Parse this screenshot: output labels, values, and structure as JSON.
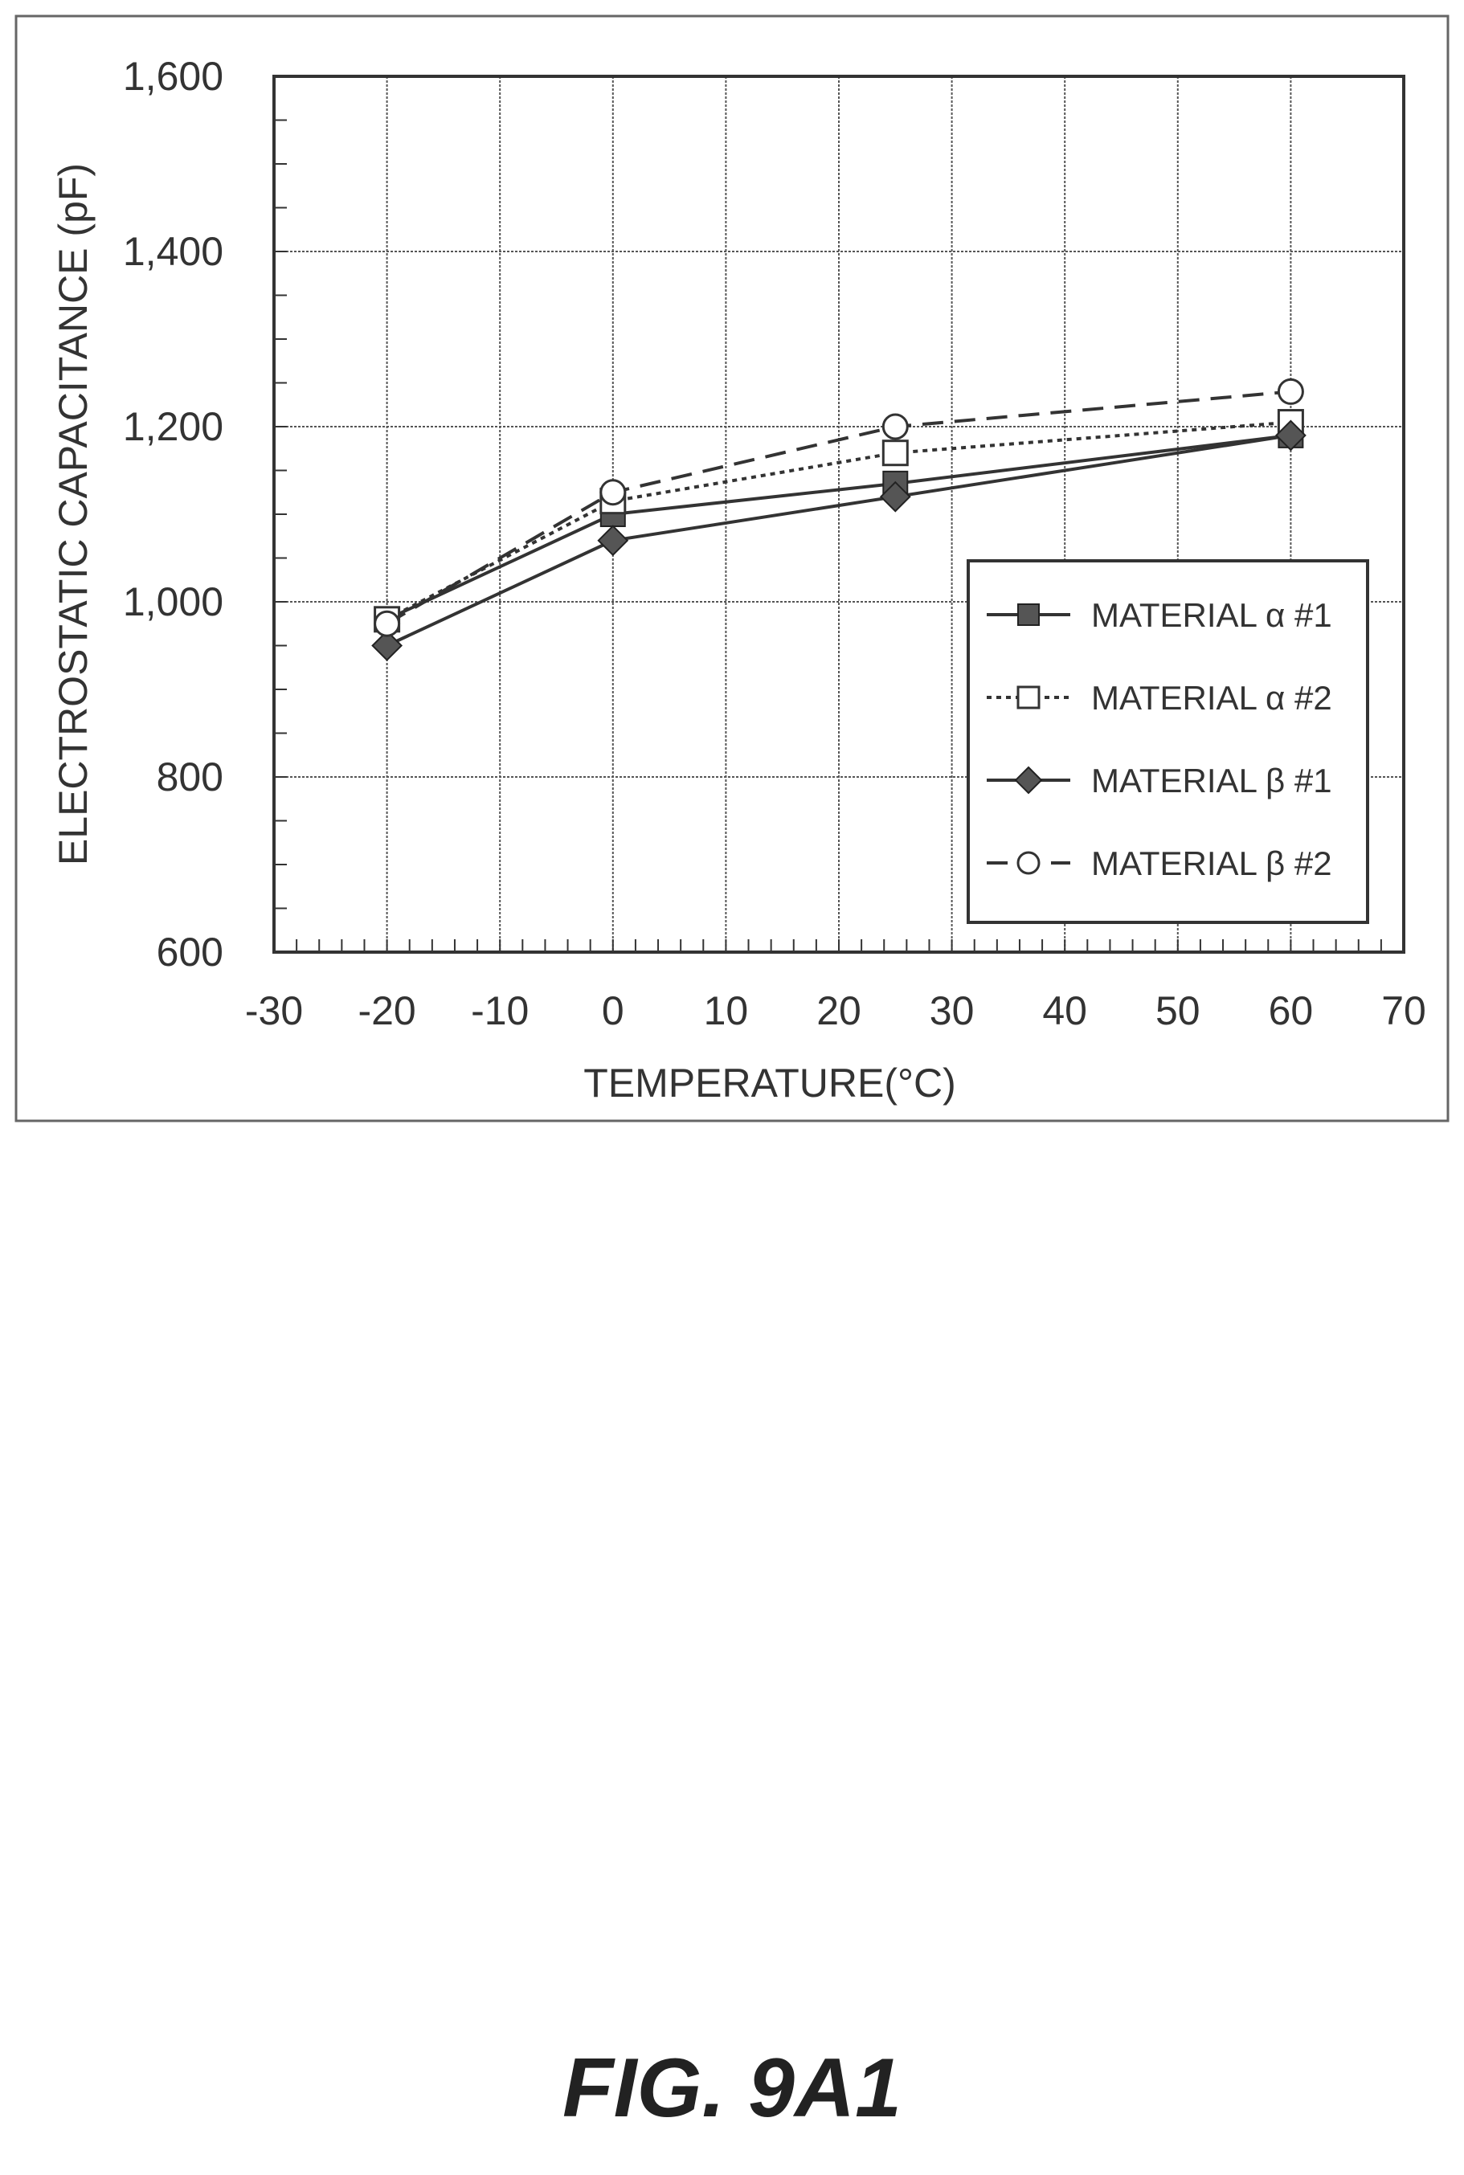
{
  "chart_data": {
    "type": "line",
    "xlabel": "TEMPERATURE(°C)",
    "ylabel": "ELECTROSTATIC CAPACITANCE (pF)",
    "xlim": [
      -30,
      70
    ],
    "ylim": [
      600,
      1600
    ],
    "x_ticks": [
      -30,
      -20,
      -10,
      0,
      10,
      20,
      30,
      40,
      50,
      60,
      70
    ],
    "x_tick_labels": [
      "-30",
      "-20",
      "-10",
      "0",
      "10",
      "20",
      "30",
      "40",
      "50",
      "60",
      "70"
    ],
    "y_ticks": [
      600,
      800,
      1000,
      1200,
      1400,
      1600
    ],
    "y_tick_labels": [
      "600",
      "800",
      "1,000",
      "1,200",
      "1,400",
      "1,600"
    ],
    "grid": true,
    "legend_position": "lower-right",
    "series": [
      {
        "name": "MATERIAL α #1",
        "x": [
          -20,
          0,
          25,
          60
        ],
        "y": [
          980,
          1100,
          1135,
          1190
        ],
        "marker": "filled-square",
        "line": "solid"
      },
      {
        "name": "MATERIAL α #2",
        "x": [
          -20,
          0,
          25,
          60
        ],
        "y": [
          980,
          1115,
          1170,
          1205
        ],
        "marker": "open-square",
        "line": "dotted"
      },
      {
        "name": "MATERIAL β #1",
        "x": [
          -20,
          0,
          25,
          60
        ],
        "y": [
          950,
          1070,
          1120,
          1190
        ],
        "marker": "filled-diamond",
        "line": "solid"
      },
      {
        "name": "MATERIAL β #2",
        "x": [
          -20,
          0,
          25,
          60
        ],
        "y": [
          975,
          1125,
          1200,
          1240
        ],
        "marker": "open-circle",
        "line": "dashed"
      }
    ]
  },
  "figure": {
    "caption": "FIG. 9A1"
  }
}
